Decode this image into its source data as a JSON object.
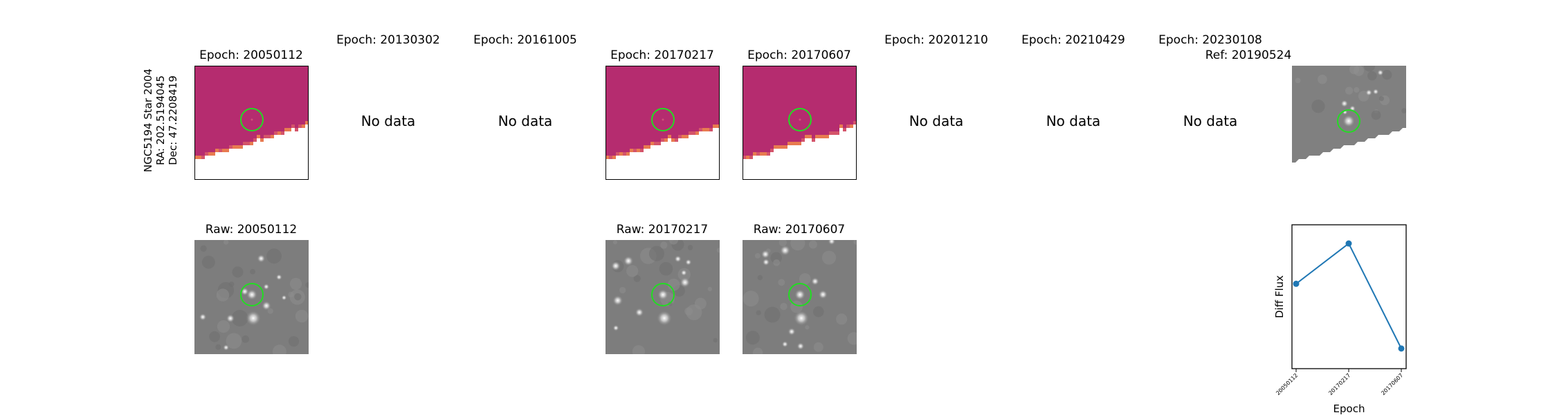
{
  "star": {
    "name": "NGC5194 Star 2004",
    "ra": "RA: 202.5194045",
    "dec": "Dec: 47.2208419"
  },
  "epochs": [
    {
      "title": "Epoch: 20050112",
      "has_data": true,
      "raw_title": "Raw: 20050112"
    },
    {
      "title": "Epoch: 20130302",
      "has_data": false,
      "no_data": "No data"
    },
    {
      "title": "Epoch: 20161005",
      "has_data": false,
      "no_data": "No data"
    },
    {
      "title": "Epoch: 20170217",
      "has_data": true,
      "raw_title": "Raw: 20170217"
    },
    {
      "title": "Epoch: 20170607",
      "has_data": true,
      "raw_title": "Raw: 20170607"
    },
    {
      "title": "Epoch: 20201210",
      "has_data": false,
      "no_data": "No data"
    },
    {
      "title": "Epoch: 20210429",
      "has_data": false,
      "no_data": "No data"
    },
    {
      "title": "Epoch: 20230108",
      "has_data": false,
      "no_data": "No data"
    }
  ],
  "reference": {
    "title": "Ref: 20190524"
  },
  "colors": {
    "diff_background": "#b52c6f",
    "marker_circle": "#22dd22",
    "line": "#1f77b4",
    "raw_background": "#7d7d7d"
  },
  "chart_data": {
    "type": "line",
    "x": [
      "20050112",
      "20170217",
      "20170607"
    ],
    "y": [
      0.59,
      0.87,
      0.14
    ],
    "ylim": [
      0.0,
      1.0
    ],
    "xlabel": "Epoch",
    "ylabel": "Diff Flux",
    "y_ticks_shown": false,
    "grid": false
  }
}
